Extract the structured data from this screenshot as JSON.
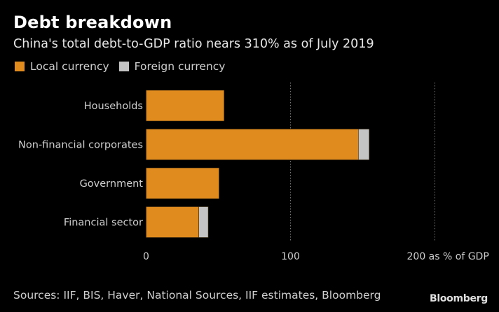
{
  "chart_data": {
    "type": "bar",
    "orientation": "horizontal",
    "stacked": true,
    "title": "Debt breakdown",
    "subtitle": "China's total debt-to-GDP ratio nears 310% as of July 2019",
    "categories": [
      "Households",
      "Non-financial corporates",
      "Government",
      "Financial sector"
    ],
    "series": [
      {
        "name": "Local currency",
        "color": "#e08b1e",
        "values": [
          54,
          147,
          50.5,
          36.5
        ]
      },
      {
        "name": "Foreign currency",
        "color": "#c4c4c4",
        "values": [
          0,
          7.5,
          0,
          6.5
        ]
      }
    ],
    "xlim": [
      0,
      200
    ],
    "xticks": [
      {
        "value": 0,
        "label": "0"
      },
      {
        "value": 100,
        "label": "100"
      },
      {
        "value": 200,
        "label": "200 as % of GDP"
      }
    ],
    "xlabel": "as % of GDP",
    "grid": "vertical dotted",
    "legend_position": "top-left",
    "source": "Sources: IIF, BIS, Haver, National Sources, IIF estimates, Bloomberg",
    "brand": "Bloomberg"
  }
}
